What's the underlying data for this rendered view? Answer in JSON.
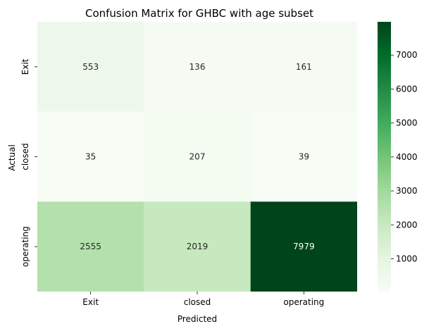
{
  "chart_data": {
    "type": "heatmap",
    "title": "Confusion Matrix for GHBC with age subset",
    "xlabel": "Predicted",
    "ylabel": "Actual",
    "x_categories": [
      "Exit",
      "closed",
      "operating"
    ],
    "y_categories": [
      "Exit",
      "closed",
      "operating"
    ],
    "values": [
      [
        553,
        136,
        161
      ],
      [
        35,
        207,
        39
      ],
      [
        2555,
        2019,
        7979
      ]
    ],
    "colormap": "Greens",
    "color_range": [
      35,
      7979
    ],
    "colorbar_ticks": [
      1000,
      2000,
      3000,
      4000,
      5000,
      6000,
      7000
    ],
    "colorbar_tick_labels": [
      "1000",
      "2000",
      "3000",
      "4000",
      "5000",
      "6000",
      "7000"
    ]
  }
}
